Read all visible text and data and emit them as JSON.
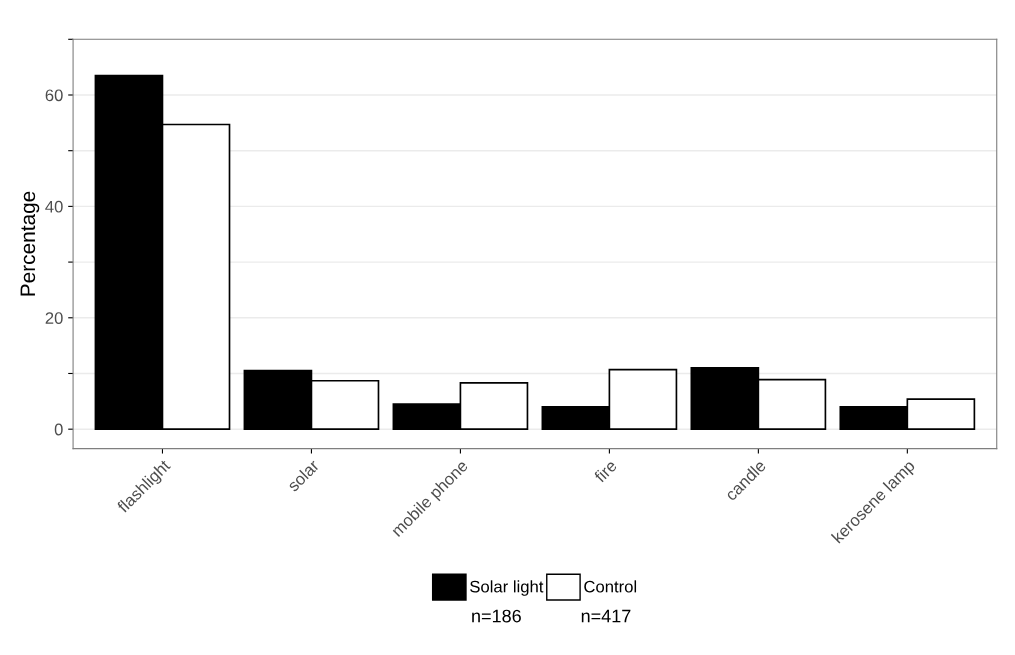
{
  "chart_data": {
    "type": "bar",
    "ylabel": "Percentage",
    "categories": [
      "flashlight",
      "solar",
      "mobile phone",
      "fire",
      "candle",
      "kerosene lamp"
    ],
    "series": [
      {
        "name": "Solar light",
        "color": "#000000",
        "values": [
          63.5,
          10.5,
          4.5,
          4.0,
          11.0,
          4.0
        ]
      },
      {
        "name": "Control",
        "color": "#ffffff",
        "values": [
          54.7,
          8.7,
          8.3,
          10.7,
          8.9,
          5.4
        ]
      }
    ],
    "ylim": [
      -3.5,
      70
    ],
    "yticks": [
      0,
      {
        "value": 10,
        "label": null
      },
      20,
      {
        "value": 30,
        "label": null
      },
      40,
      {
        "value": 50,
        "label": null
      },
      60,
      {
        "value": 70,
        "label": null
      }
    ],
    "grid": "y",
    "legend": "bottom",
    "annotations": [
      "n=186",
      "n=417"
    ]
  }
}
